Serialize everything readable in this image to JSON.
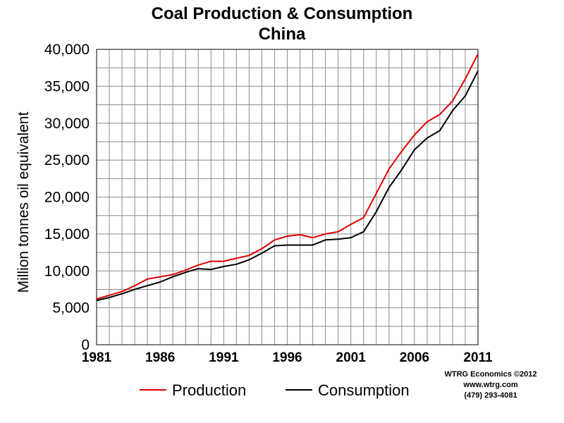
{
  "chart_data": {
    "type": "line",
    "title": "Coal Production & Consumption",
    "subtitle": "China",
    "ylabel": "Million tonnes oil equivalent",
    "xlabel": "",
    "xlim": [
      1981,
      2011
    ],
    "ylim": [
      0,
      40000
    ],
    "x_ticks": [
      "1981",
      "1986",
      "1991",
      "1996",
      "2001",
      "2006",
      "2011"
    ],
    "y_ticks": [
      "0",
      "5,000",
      "10,000",
      "15,000",
      "20,000",
      "25,000",
      "30,000",
      "35,000",
      "40,000"
    ],
    "grid": true,
    "legend_position": "bottom",
    "x": [
      1981,
      1982,
      1983,
      1984,
      1985,
      1986,
      1987,
      1988,
      1989,
      1990,
      1991,
      1992,
      1993,
      1994,
      1995,
      1996,
      1997,
      1998,
      1999,
      2000,
      2001,
      2002,
      2003,
      2004,
      2005,
      2006,
      2007,
      2008,
      2009,
      2010,
      2011
    ],
    "series": [
      {
        "name": "Production",
        "color": "#e00000",
        "values": [
          6200,
          6700,
          7200,
          8000,
          8900,
          9200,
          9500,
          10100,
          10800,
          11300,
          11300,
          11700,
          12100,
          13000,
          14200,
          14700,
          14900,
          14500,
          15000,
          15300,
          16300,
          17200,
          20500,
          23800,
          26200,
          28400,
          30200,
          31200,
          33000,
          36000,
          39400
        ]
      },
      {
        "name": "Consumption",
        "color": "#000000",
        "values": [
          6000,
          6400,
          6900,
          7500,
          8000,
          8500,
          9200,
          9800,
          10300,
          10200,
          10600,
          10900,
          11500,
          12400,
          13400,
          13500,
          13500,
          13500,
          14200,
          14300,
          14500,
          15300,
          18000,
          21300,
          23700,
          26400,
          28000,
          29000,
          31700,
          33700,
          37100
        ]
      }
    ]
  },
  "credits": {
    "line1": "WTRG Economics  ©2012",
    "line2": "www.wtrg.com",
    "line3": "(479) 293-4081"
  }
}
